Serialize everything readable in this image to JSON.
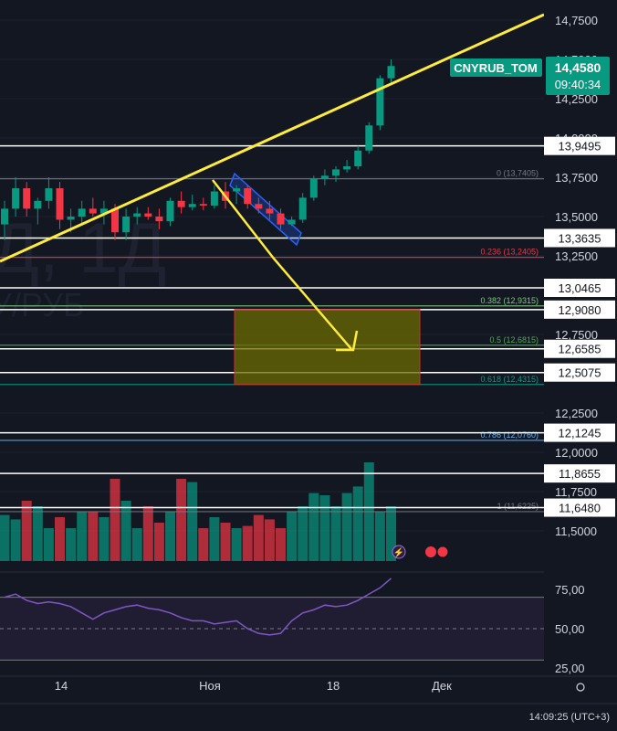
{
  "colors": {
    "background": "#131722",
    "up": "#089981",
    "down": "#f23645",
    "trendline": "#ffeb3b",
    "level": "#ffffff",
    "fib0": "#787b86",
    "fib236": "#f23645",
    "fib382": "#81c784",
    "fib5": "#4caf50",
    "fib618": "#089981",
    "fib786": "#64b5f6",
    "rsi_line": "#7e57c2",
    "rsi_band": "#2a2240",
    "zone_fill": "#6b6b00",
    "zone_border": "#d32f2f",
    "channel": "#2962ff",
    "price_badge": "#089981"
  },
  "watermark": {
    "line1": "Д, 1Д",
    "line2": "У/РУБ"
  },
  "symbol": {
    "name": "CNYRUB_TOM",
    "last_price": "14,4580",
    "countdown": "09:40:34"
  },
  "price_axis": {
    "ticks": [
      {
        "value": 14.75,
        "label": "14,7500"
      },
      {
        "value": 14.5,
        "label": "14,5000"
      },
      {
        "value": 14.25,
        "label": "14,2500"
      },
      {
        "value": 14.0,
        "label": "14,0000"
      },
      {
        "value": 13.75,
        "label": "13,7500"
      },
      {
        "value": 13.5,
        "label": "13,5000"
      },
      {
        "value": 13.25,
        "label": "13,2500"
      },
      {
        "value": 12.75,
        "label": "12,7500"
      },
      {
        "value": 12.25,
        "label": "12,2500"
      },
      {
        "value": 12.0,
        "label": "12,0000"
      },
      {
        "value": 11.75,
        "label": "11,7500"
      },
      {
        "value": 11.5,
        "label": "11,5000"
      }
    ]
  },
  "levels": [
    {
      "value": 13.9495,
      "label": "13,9495"
    },
    {
      "value": 13.3635,
      "label": "13,3635"
    },
    {
      "value": 13.0465,
      "label": "13,0465"
    },
    {
      "value": 12.908,
      "label": "12,9080"
    },
    {
      "value": 12.6585,
      "label": "12,6585"
    },
    {
      "value": 12.5075,
      "label": "12,5075"
    },
    {
      "value": 12.1245,
      "label": "12,1245"
    },
    {
      "value": 11.8655,
      "label": "11,8655"
    },
    {
      "value": 11.648,
      "label": "11,6480"
    }
  ],
  "fibonacci": [
    {
      "value": 13.7405,
      "label": "0 (13,7405)",
      "color_key": "fib0"
    },
    {
      "value": 13.2405,
      "label": "0.236 (13,2405)",
      "color_key": "fib236"
    },
    {
      "value": 12.9315,
      "label": "0.382 (12,9315)",
      "color_key": "fib382"
    },
    {
      "value": 12.6815,
      "label": "0.5 (12,6815)",
      "color_key": "fib5"
    },
    {
      "value": 12.4315,
      "label": "0.618 (12,4315)",
      "color_key": "fib618"
    },
    {
      "value": 12.076,
      "label": "0.786 (12,0760)",
      "color_key": "fib786"
    },
    {
      "value": 11.6225,
      "label": "1 (11,6225)",
      "color_key": "fib0"
    }
  ],
  "rsi_axis": {
    "ticks": [
      {
        "value": 75,
        "label": "75,00"
      },
      {
        "value": 50,
        "label": "50,00"
      },
      {
        "value": 25,
        "label": "25,00"
      }
    ]
  },
  "time_axis": {
    "labels": [
      "14",
      "Ноя",
      "18",
      "Дек"
    ],
    "clock": "14:09:25 (UTC+3)"
  },
  "chart_data": {
    "type": "candlestick",
    "price_range": [
      11.4,
      14.83
    ],
    "candles": [
      {
        "o": 13.45,
        "h": 13.6,
        "l": 13.35,
        "c": 13.55
      },
      {
        "o": 13.55,
        "h": 13.75,
        "l": 13.5,
        "c": 13.68
      },
      {
        "o": 13.68,
        "h": 13.72,
        "l": 13.5,
        "c": 13.55
      },
      {
        "o": 13.55,
        "h": 13.62,
        "l": 13.45,
        "c": 13.6
      },
      {
        "o": 13.6,
        "h": 13.75,
        "l": 13.55,
        "c": 13.68
      },
      {
        "o": 13.68,
        "h": 13.72,
        "l": 13.42,
        "c": 13.48
      },
      {
        "o": 13.48,
        "h": 13.55,
        "l": 13.4,
        "c": 13.5
      },
      {
        "o": 13.5,
        "h": 13.6,
        "l": 13.45,
        "c": 13.55
      },
      {
        "o": 13.55,
        "h": 13.62,
        "l": 13.5,
        "c": 13.52
      },
      {
        "o": 13.52,
        "h": 13.6,
        "l": 13.45,
        "c": 13.55
      },
      {
        "o": 13.55,
        "h": 13.58,
        "l": 13.35,
        "c": 13.4
      },
      {
        "o": 13.4,
        "h": 13.55,
        "l": 13.35,
        "c": 13.5
      },
      {
        "o": 13.5,
        "h": 13.56,
        "l": 13.45,
        "c": 13.52
      },
      {
        "o": 13.52,
        "h": 13.56,
        "l": 13.48,
        "c": 13.5
      },
      {
        "o": 13.5,
        "h": 13.55,
        "l": 13.42,
        "c": 13.47
      },
      {
        "o": 13.47,
        "h": 13.62,
        "l": 13.44,
        "c": 13.6
      },
      {
        "o": 13.6,
        "h": 13.66,
        "l": 13.52,
        "c": 13.56
      },
      {
        "o": 13.56,
        "h": 13.64,
        "l": 13.54,
        "c": 13.58
      },
      {
        "o": 13.58,
        "h": 13.62,
        "l": 13.54,
        "c": 13.57
      },
      {
        "o": 13.57,
        "h": 13.7,
        "l": 13.55,
        "c": 13.66
      },
      {
        "o": 13.66,
        "h": 13.72,
        "l": 13.55,
        "c": 13.6
      },
      {
        "o": 13.66,
        "h": 13.7,
        "l": 13.58,
        "c": 13.68
      },
      {
        "o": 13.68,
        "h": 13.7,
        "l": 13.55,
        "c": 13.58
      },
      {
        "o": 13.58,
        "h": 13.62,
        "l": 13.52,
        "c": 13.55
      },
      {
        "o": 13.55,
        "h": 13.6,
        "l": 13.48,
        "c": 13.52
      },
      {
        "o": 13.52,
        "h": 13.55,
        "l": 13.42,
        "c": 13.45
      },
      {
        "o": 13.45,
        "h": 13.5,
        "l": 13.44,
        "c": 13.48
      },
      {
        "o": 13.48,
        "h": 13.65,
        "l": 13.46,
        "c": 13.62
      },
      {
        "o": 13.62,
        "h": 13.76,
        "l": 13.6,
        "c": 13.74
      },
      {
        "o": 13.74,
        "h": 13.8,
        "l": 13.7,
        "c": 13.76
      },
      {
        "o": 13.76,
        "h": 13.82,
        "l": 13.72,
        "c": 13.8
      },
      {
        "o": 13.8,
        "h": 13.86,
        "l": 13.78,
        "c": 13.82
      },
      {
        "o": 13.82,
        "h": 13.95,
        "l": 13.8,
        "c": 13.92
      },
      {
        "o": 13.92,
        "h": 14.1,
        "l": 13.9,
        "c": 14.08
      },
      {
        "o": 14.08,
        "h": 14.4,
        "l": 14.05,
        "c": 14.38
      },
      {
        "o": 14.38,
        "h": 14.5,
        "l": 14.35,
        "c": 14.458
      }
    ],
    "volume": [
      0.42,
      0.38,
      0.55,
      0.5,
      0.3,
      0.4,
      0.3,
      0.45,
      0.45,
      0.4,
      0.75,
      0.55,
      0.3,
      0.5,
      0.35,
      0.45,
      0.75,
      0.72,
      0.3,
      0.4,
      0.35,
      0.3,
      0.32,
      0.42,
      0.38,
      0.3,
      0.45,
      0.5,
      0.62,
      0.6,
      0.5,
      0.62,
      0.68,
      0.9,
      0.45,
      0.5
    ],
    "rsi": [
      70,
      72,
      68,
      66,
      67,
      66,
      64,
      60,
      56,
      60,
      62,
      64,
      65,
      63,
      62,
      60,
      57,
      55,
      55,
      53,
      54,
      55,
      50,
      47,
      46,
      47,
      55,
      60,
      62,
      65,
      64,
      65,
      68,
      72,
      76,
      82
    ]
  }
}
